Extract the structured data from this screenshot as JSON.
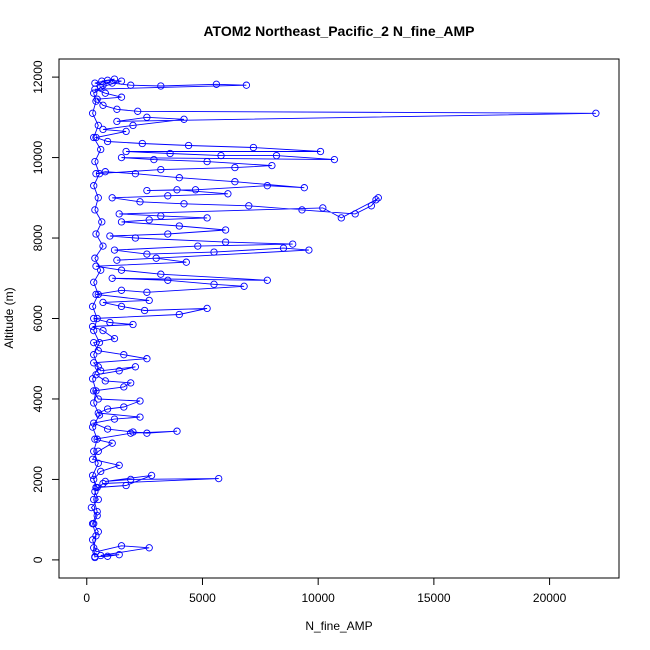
{
  "chart_data": {
    "type": "scatter",
    "title": "ATOM2 Northeast_Pacific_2 N_fine_AMP",
    "xlabel": "N_fine_AMP",
    "ylabel": "Altitude (m)",
    "xlim": [
      -1200,
      23000
    ],
    "ylim": [
      -450,
      12450
    ],
    "x_ticks": [
      0,
      5000,
      10000,
      15000,
      20000
    ],
    "y_ticks": [
      0,
      2000,
      4000,
      6000,
      8000,
      10000,
      12000
    ],
    "grid": false,
    "legend": "none",
    "point_style": "open-circle-with-connecting-line",
    "color": "#0000ff",
    "series": [
      {
        "values_note": "",
        "points": [
          [
            350,
            80
          ],
          [
            900,
            90
          ],
          [
            1400,
            130
          ],
          [
            600,
            110
          ],
          [
            2700,
            300
          ],
          [
            1500,
            350
          ],
          [
            400,
            200
          ],
          [
            250,
            500
          ],
          [
            500,
            700
          ],
          [
            300,
            900
          ],
          [
            450,
            1100
          ],
          [
            200,
            1300
          ],
          [
            500,
            1500
          ],
          [
            350,
            1700
          ],
          [
            700,
            1900
          ],
          [
            5700,
            2020
          ],
          [
            1900,
            2000
          ],
          [
            800,
            1950
          ],
          [
            2800,
            2100
          ],
          [
            1700,
            1850
          ],
          [
            450,
            1800
          ],
          [
            300,
            2000
          ],
          [
            600,
            2200
          ],
          [
            1400,
            2350
          ],
          [
            250,
            2500
          ],
          [
            500,
            2700
          ],
          [
            1100,
            2900
          ],
          [
            350,
            3000
          ],
          [
            1900,
            3150
          ],
          [
            3900,
            3200
          ],
          [
            2600,
            3150
          ],
          [
            2000,
            3180
          ],
          [
            900,
            3250
          ],
          [
            300,
            3400
          ],
          [
            1200,
            3500
          ],
          [
            2300,
            3550
          ],
          [
            500,
            3650
          ],
          [
            900,
            3750
          ],
          [
            1600,
            3800
          ],
          [
            2300,
            3950
          ],
          [
            500,
            4000
          ],
          [
            300,
            4200
          ],
          [
            1600,
            4300
          ],
          [
            1900,
            4400
          ],
          [
            800,
            4450
          ],
          [
            400,
            4600
          ],
          [
            1400,
            4700
          ],
          [
            2100,
            4800
          ],
          [
            600,
            4700
          ],
          [
            300,
            4900
          ],
          [
            2600,
            5000
          ],
          [
            1600,
            5100
          ],
          [
            500,
            5200
          ],
          [
            300,
            5400
          ],
          [
            1200,
            5500
          ],
          [
            700,
            5700
          ],
          [
            250,
            5800
          ],
          [
            2000,
            5850
          ],
          [
            1000,
            5900
          ],
          [
            300,
            6000
          ],
          [
            4000,
            6100
          ],
          [
            5200,
            6250
          ],
          [
            2500,
            6200
          ],
          [
            1500,
            6300
          ],
          [
            700,
            6400
          ],
          [
            2700,
            6450
          ],
          [
            400,
            6600
          ],
          [
            1500,
            6700
          ],
          [
            2600,
            6650
          ],
          [
            6800,
            6800
          ],
          [
            5500,
            6850
          ],
          [
            3500,
            6950
          ],
          [
            1100,
            7000
          ],
          [
            7800,
            6950
          ],
          [
            3200,
            7100
          ],
          [
            1500,
            7200
          ],
          [
            400,
            7300
          ],
          [
            4300,
            7400
          ],
          [
            3000,
            7500
          ],
          [
            1300,
            7450
          ],
          [
            9600,
            7700
          ],
          [
            8500,
            7750
          ],
          [
            5500,
            7650
          ],
          [
            2600,
            7600
          ],
          [
            1200,
            7700
          ],
          [
            4800,
            7800
          ],
          [
            8900,
            7850
          ],
          [
            6000,
            7900
          ],
          [
            2100,
            8000
          ],
          [
            1000,
            8050
          ],
          [
            3500,
            8100
          ],
          [
            6000,
            8200
          ],
          [
            4000,
            8300
          ],
          [
            1500,
            8400
          ],
          [
            2700,
            8450
          ],
          [
            5200,
            8500
          ],
          [
            3200,
            8550
          ],
          [
            1400,
            8600
          ],
          [
            10200,
            8750
          ],
          [
            11000,
            8500
          ],
          [
            12500,
            8950
          ],
          [
            12600,
            9000
          ],
          [
            12300,
            8800
          ],
          [
            11600,
            8600
          ],
          [
            9300,
            8700
          ],
          [
            7000,
            8800
          ],
          [
            4200,
            8850
          ],
          [
            2300,
            8900
          ],
          [
            1100,
            9000
          ],
          [
            3500,
            9050
          ],
          [
            6100,
            9100
          ],
          [
            3900,
            9200
          ],
          [
            2600,
            9180
          ],
          [
            4700,
            9200
          ],
          [
            7800,
            9300
          ],
          [
            9400,
            9250
          ],
          [
            6400,
            9400
          ],
          [
            4000,
            9500
          ],
          [
            2100,
            9600
          ],
          [
            800,
            9650
          ],
          [
            400,
            9600
          ],
          [
            3200,
            9700
          ],
          [
            6400,
            9750
          ],
          [
            8000,
            9800
          ],
          [
            5200,
            9900
          ],
          [
            2900,
            9950
          ],
          [
            1500,
            10000
          ],
          [
            10700,
            9950
          ],
          [
            8200,
            10050
          ],
          [
            5800,
            10050
          ],
          [
            3600,
            10100
          ],
          [
            1700,
            10150
          ],
          [
            10100,
            10150
          ],
          [
            7200,
            10250
          ],
          [
            4400,
            10300
          ],
          [
            2400,
            10350
          ],
          [
            900,
            10400
          ],
          [
            400,
            10500
          ],
          [
            1700,
            10650
          ],
          [
            700,
            10700
          ],
          [
            2000,
            10800
          ],
          [
            4200,
            10950
          ],
          [
            2600,
            11000
          ],
          [
            1300,
            10900
          ],
          [
            22000,
            11100
          ],
          [
            2200,
            11150
          ],
          [
            1300,
            11200
          ],
          [
            700,
            11300
          ],
          [
            450,
            11450
          ],
          [
            1500,
            11500
          ],
          [
            800,
            11600
          ],
          [
            350,
            11700
          ],
          [
            6900,
            11800
          ],
          [
            5600,
            11820
          ],
          [
            3200,
            11780
          ],
          [
            1900,
            11800
          ],
          [
            1100,
            11850
          ],
          [
            650,
            11900
          ],
          [
            1200,
            11950
          ],
          [
            700,
            11800
          ],
          [
            350,
            11850
          ],
          [
            900,
            11920
          ],
          [
            1500,
            11900
          ],
          [
            600,
            11750
          ],
          [
            300,
            11600
          ],
          [
            400,
            11400
          ],
          [
            250,
            11100
          ],
          [
            500,
            10800
          ],
          [
            300,
            10500
          ],
          [
            600,
            10200
          ],
          [
            350,
            9900
          ],
          [
            550,
            9600
          ],
          [
            300,
            9300
          ],
          [
            500,
            9000
          ],
          [
            350,
            8700
          ],
          [
            650,
            8400
          ],
          [
            400,
            8100
          ],
          [
            700,
            7800
          ],
          [
            350,
            7500
          ],
          [
            600,
            7200
          ],
          [
            300,
            6900
          ],
          [
            500,
            6600
          ],
          [
            250,
            6300
          ],
          [
            450,
            6000
          ],
          [
            300,
            5700
          ],
          [
            550,
            5400
          ],
          [
            300,
            5100
          ],
          [
            500,
            4800
          ],
          [
            250,
            4500
          ],
          [
            400,
            4200
          ],
          [
            300,
            3900
          ],
          [
            550,
            3600
          ],
          [
            250,
            3300
          ],
          [
            450,
            3000
          ],
          [
            300,
            2700
          ],
          [
            500,
            2400
          ],
          [
            250,
            2100
          ],
          [
            400,
            1800
          ],
          [
            300,
            1500
          ],
          [
            450,
            1200
          ],
          [
            250,
            900
          ],
          [
            400,
            600
          ],
          [
            300,
            300
          ],
          [
            350,
            60
          ]
        ]
      }
    ]
  }
}
